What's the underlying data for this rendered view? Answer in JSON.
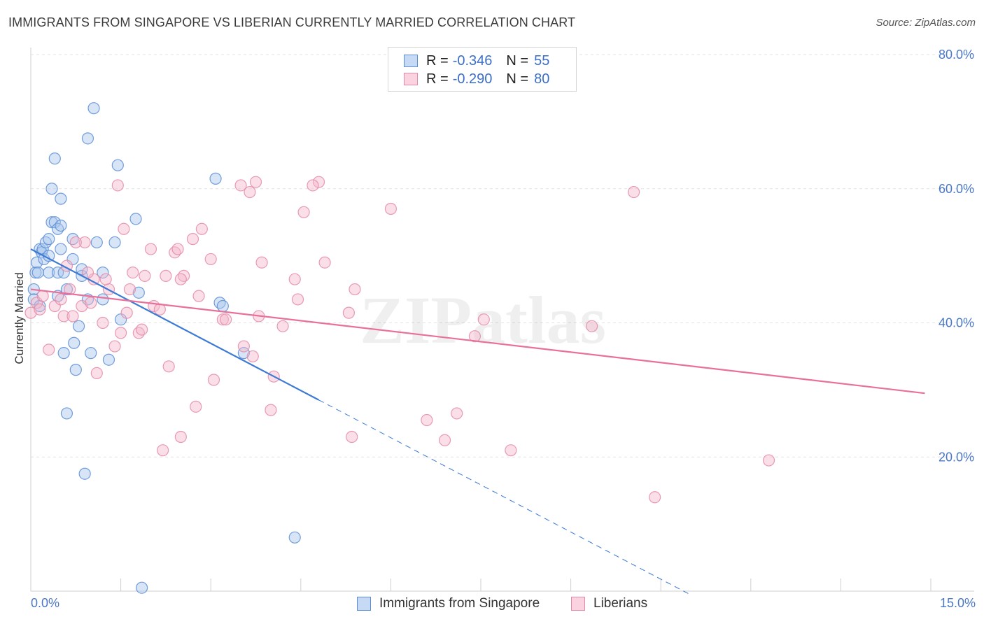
{
  "title": "IMMIGRANTS FROM SINGAPORE VS LIBERIAN CURRENTLY MARRIED CORRELATION CHART",
  "source": "Source: ZipAtlas.com",
  "watermark": "ZIPatlas",
  "colors": {
    "blue_fill": "#a9c6ec",
    "blue_stroke": "#5b8dd6",
    "blue_line": "#3d7ad6",
    "pink_fill": "#f5b8cb",
    "pink_stroke": "#e48aa8",
    "pink_line": "#e8709a",
    "tick_text": "#4a78c5",
    "grid": "#e3e3e3"
  },
  "legend": {
    "r_label": "R =",
    "n_label": "N =",
    "rows": [
      {
        "r": "-0.346",
        "n": "55"
      },
      {
        "r": "-0.290",
        "n": "80"
      }
    ]
  },
  "chart_data": {
    "type": "scatter",
    "title": "IMMIGRANTS FROM SINGAPORE VS LIBERIAN CURRENTLY MARRIED CORRELATION CHART",
    "xlabel": "",
    "ylabel": "Currently Married",
    "xlim": [
      0,
      15
    ],
    "ylim": [
      0,
      80
    ],
    "x_tick_labels": [
      "0.0%",
      "15.0%"
    ],
    "y_ticks": [
      20,
      40,
      60,
      80
    ],
    "y_tick_labels": [
      "20.0%",
      "40.0%",
      "60.0%",
      "80.0%"
    ],
    "grid": true,
    "legend_position": "top-center",
    "series": [
      {
        "name": "Immigrants from Singapore",
        "r": -0.346,
        "n": 55,
        "points": [
          [
            0.05,
            45.0
          ],
          [
            0.05,
            43.5
          ],
          [
            0.08,
            47.5
          ],
          [
            0.1,
            49.0
          ],
          [
            0.12,
            47.5
          ],
          [
            0.15,
            42.5
          ],
          [
            0.15,
            51.0
          ],
          [
            0.18,
            50.5
          ],
          [
            0.2,
            51.0
          ],
          [
            0.22,
            49.5
          ],
          [
            0.25,
            52.0
          ],
          [
            0.3,
            52.5
          ],
          [
            0.3,
            47.5
          ],
          [
            0.3,
            50.0
          ],
          [
            0.35,
            55.0
          ],
          [
            0.35,
            60.0
          ],
          [
            0.4,
            55.0
          ],
          [
            0.45,
            54.0
          ],
          [
            0.4,
            64.5
          ],
          [
            0.45,
            47.5
          ],
          [
            0.45,
            44.0
          ],
          [
            0.5,
            54.5
          ],
          [
            0.5,
            58.5
          ],
          [
            0.5,
            51.0
          ],
          [
            0.55,
            47.5
          ],
          [
            0.55,
            35.5
          ],
          [
            0.6,
            45.0
          ],
          [
            0.6,
            26.5
          ],
          [
            0.7,
            49.5
          ],
          [
            0.7,
            52.5
          ],
          [
            0.72,
            37.0
          ],
          [
            0.75,
            33.0
          ],
          [
            0.8,
            39.5
          ],
          [
            0.85,
            47.0
          ],
          [
            0.85,
            48.0
          ],
          [
            0.9,
            17.5
          ],
          [
            0.95,
            43.5
          ],
          [
            0.95,
            67.5
          ],
          [
            1.0,
            35.5
          ],
          [
            1.05,
            72.0
          ],
          [
            1.1,
            52.0
          ],
          [
            1.2,
            47.5
          ],
          [
            1.2,
            43.5
          ],
          [
            1.3,
            34.5
          ],
          [
            1.4,
            52.0
          ],
          [
            1.45,
            63.5
          ],
          [
            1.5,
            40.5
          ],
          [
            1.75,
            55.5
          ],
          [
            1.85,
            0.5
          ],
          [
            3.08,
            61.5
          ],
          [
            3.55,
            35.5
          ],
          [
            3.15,
            43.0
          ],
          [
            3.2,
            42.5
          ],
          [
            4.4,
            8.0
          ],
          [
            1.8,
            44.5
          ]
        ],
        "trend": {
          "x0": 0.0,
          "y0": 51.0,
          "x1": 4.8,
          "y1": 28.5,
          "dashed_to_x": 11.0
        }
      },
      {
        "name": "Liberians",
        "r": -0.29,
        "n": 80,
        "points": [
          [
            0.0,
            41.5
          ],
          [
            0.1,
            43.0
          ],
          [
            0.2,
            44.0
          ],
          [
            0.3,
            36.0
          ],
          [
            0.4,
            42.5
          ],
          [
            0.5,
            43.5
          ],
          [
            0.55,
            41.0
          ],
          [
            0.6,
            48.5
          ],
          [
            0.65,
            45.0
          ],
          [
            0.7,
            41.0
          ],
          [
            0.85,
            42.5
          ],
          [
            0.9,
            52.0
          ],
          [
            1.0,
            43.0
          ],
          [
            1.05,
            46.5
          ],
          [
            1.1,
            32.5
          ],
          [
            1.2,
            40.0
          ],
          [
            1.3,
            45.0
          ],
          [
            1.4,
            36.5
          ],
          [
            1.45,
            60.5
          ],
          [
            1.5,
            38.5
          ],
          [
            1.55,
            54.0
          ],
          [
            1.6,
            41.5
          ],
          [
            1.7,
            47.5
          ],
          [
            1.8,
            38.5
          ],
          [
            1.85,
            39.0
          ],
          [
            1.9,
            47.0
          ],
          [
            2.0,
            51.0
          ],
          [
            2.05,
            42.5
          ],
          [
            2.15,
            42.0
          ],
          [
            2.2,
            21.0
          ],
          [
            2.25,
            47.0
          ],
          [
            2.3,
            33.5
          ],
          [
            2.4,
            50.5
          ],
          [
            2.45,
            51.0
          ],
          [
            2.5,
            23.0
          ],
          [
            2.55,
            47.0
          ],
          [
            2.7,
            52.5
          ],
          [
            2.75,
            27.5
          ],
          [
            2.8,
            44.0
          ],
          [
            2.85,
            54.0
          ],
          [
            3.0,
            49.5
          ],
          [
            3.05,
            31.5
          ],
          [
            3.2,
            40.5
          ],
          [
            3.5,
            60.5
          ],
          [
            3.55,
            36.5
          ],
          [
            3.65,
            59.5
          ],
          [
            3.75,
            61.0
          ],
          [
            3.7,
            35.0
          ],
          [
            3.8,
            41.0
          ],
          [
            3.85,
            49.0
          ],
          [
            4.0,
            27.0
          ],
          [
            4.05,
            32.0
          ],
          [
            4.2,
            39.5
          ],
          [
            4.4,
            46.5
          ],
          [
            4.45,
            43.5
          ],
          [
            4.55,
            56.5
          ],
          [
            4.8,
            61.0
          ],
          [
            4.9,
            49.0
          ],
          [
            5.3,
            41.5
          ],
          [
            5.35,
            23.0
          ],
          [
            5.4,
            45.0
          ],
          [
            6.0,
            57.0
          ],
          [
            6.6,
            25.5
          ],
          [
            6.9,
            22.5
          ],
          [
            7.1,
            26.5
          ],
          [
            7.4,
            38.0
          ],
          [
            7.55,
            40.5
          ],
          [
            8.0,
            21.0
          ],
          [
            9.35,
            39.5
          ],
          [
            10.05,
            59.5
          ],
          [
            10.4,
            14.0
          ],
          [
            12.3,
            19.5
          ],
          [
            0.75,
            52.0
          ],
          [
            1.25,
            46.5
          ],
          [
            0.15,
            42.0
          ],
          [
            2.5,
            46.5
          ],
          [
            3.25,
            40.5
          ],
          [
            4.7,
            60.5
          ],
          [
            0.95,
            47.5
          ],
          [
            1.65,
            45.0
          ]
        ],
        "trend": {
          "x0": 0.0,
          "y0": 45.0,
          "x1": 14.9,
          "y1": 29.5
        }
      }
    ]
  }
}
